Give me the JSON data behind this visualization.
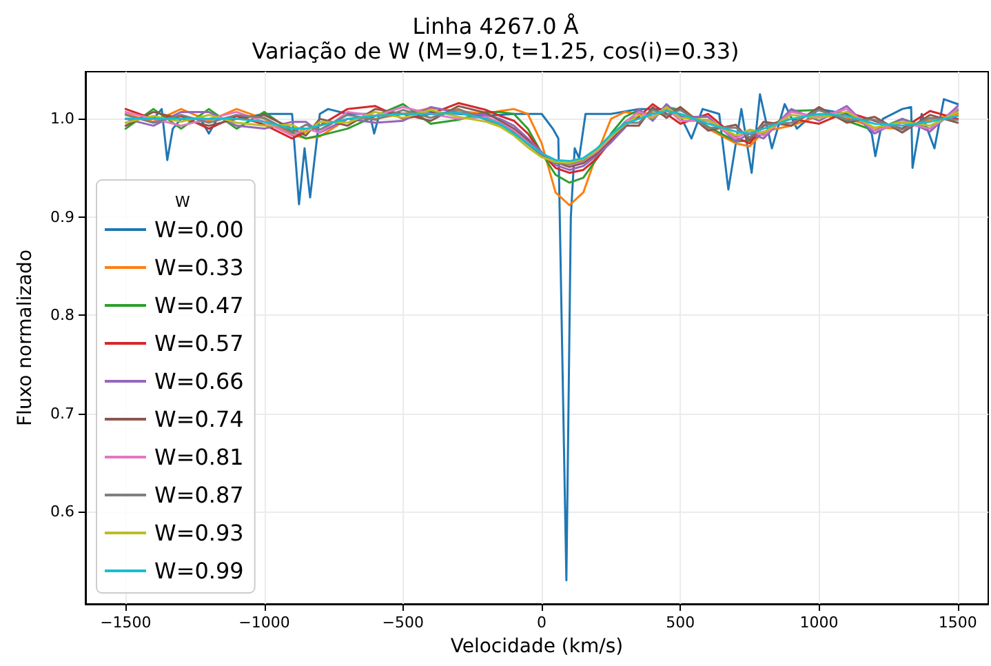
{
  "chart_data": {
    "type": "line",
    "title": "Linha 4267.0 Å",
    "subtitle": "Variação de W (M=9.0, t=1.25, cos(i)=0.33)",
    "xlabel": "Velocidade (km/s)",
    "ylabel": "Fluxo normalizado",
    "legend_title": "W",
    "legend": "bottom left",
    "grid": true,
    "marker": "none",
    "line_style": "solid",
    "xlim": [
      -1645,
      1610
    ],
    "ylim": [
      0.506,
      1.048
    ],
    "xticks": [
      {
        "value": -1500,
        "label": "−1500"
      },
      {
        "value": -1000,
        "label": "−1000"
      },
      {
        "value": -500,
        "label": "−500"
      },
      0,
      500,
      1000,
      1500
    ],
    "yticks": [
      0.6,
      0.7,
      0.8,
      0.9,
      {
        "value": 1.0,
        "label": "1.0"
      }
    ],
    "x": [
      -1500,
      -1400,
      -1300,
      -1200,
      -1100,
      -1000,
      -900,
      -850,
      -800,
      -700,
      -600,
      -500,
      -400,
      -300,
      -200,
      -150,
      -100,
      -50,
      0,
      50,
      100,
      150,
      200,
      250,
      300,
      350,
      400,
      450,
      500,
      600,
      700,
      750,
      800,
      900,
      1000,
      1100,
      1200,
      1300,
      1400,
      1500
    ],
    "series": [
      {
        "name": "W=0.00",
        "color": "#1f77b4",
        "x": [
          -1500,
          -1400,
          -1370,
          -1350,
          -1330,
          -1300,
          -1230,
          -1200,
          -1170,
          -1100,
          -1000,
          -900,
          -875,
          -855,
          -835,
          -800,
          -770,
          -700,
          -620,
          -604,
          -585,
          -500,
          -400,
          -300,
          -200,
          -100,
          0,
          40,
          60,
          89,
          105,
          119,
          135,
          158,
          250,
          350,
          450,
          500,
          540,
          580,
          640,
          673,
          720,
          757,
          787,
          830,
          876,
          920,
          1000,
          1100,
          1150,
          1190,
          1203,
          1230,
          1300,
          1332,
          1337,
          1370,
          1416,
          1450,
          1500
        ],
        "values": [
          1.0,
          1.0,
          1.01,
          0.958,
          0.99,
          1.0,
          1.0,
          0.985,
          1.0,
          1.0,
          1.005,
          1.005,
          0.913,
          0.97,
          0.92,
          1.005,
          1.01,
          1.005,
          1.005,
          0.985,
          1.005,
          1.005,
          1.007,
          1.005,
          1.003,
          1.005,
          1.005,
          0.99,
          0.98,
          0.53,
          0.9,
          0.97,
          0.96,
          1.005,
          1.005,
          1.01,
          1.01,
          1.003,
          0.98,
          1.01,
          1.005,
          0.928,
          1.01,
          0.945,
          1.025,
          0.97,
          1.015,
          0.99,
          1.01,
          1.005,
          1.0,
          0.985,
          0.962,
          1.0,
          1.01,
          1.012,
          0.95,
          1.005,
          0.97,
          1.02,
          1.015
        ]
      },
      {
        "name": "W=0.33",
        "color": "#ff7f0e",
        "values": [
          1.005,
          0.997,
          1.01,
          0.998,
          1.01,
          1.0,
          0.984,
          0.98,
          0.982,
          1.0,
          1.0,
          1.005,
          1.011,
          1.008,
          1.005,
          1.008,
          1.01,
          1.005,
          0.975,
          0.925,
          0.912,
          0.925,
          0.965,
          1.0,
          1.007,
          1.005,
          1.006,
          1.004,
          1.012,
          0.99,
          0.975,
          0.972,
          0.987,
          0.993,
          1.003,
          1.001,
          0.991,
          0.99,
          0.999,
          1.005
        ]
      },
      {
        "name": "W=0.47",
        "color": "#2ca02c",
        "values": [
          0.99,
          1.01,
          0.99,
          1.01,
          0.99,
          1.007,
          0.987,
          0.98,
          0.983,
          0.99,
          1.003,
          1.015,
          0.995,
          0.999,
          1.007,
          1.007,
          1.005,
          0.99,
          0.965,
          0.943,
          0.935,
          0.94,
          0.96,
          0.985,
          1.002,
          1.009,
          1.0,
          1.012,
          1.009,
          0.992,
          0.977,
          0.978,
          0.985,
          1.008,
          1.009,
          0.998,
          0.988,
          1.0,
          0.99,
          1.009
        ]
      },
      {
        "name": "W=0.57",
        "color": "#d62728",
        "values": [
          1.01,
          1.0,
          1.003,
          0.99,
          1.003,
          0.994,
          0.98,
          0.987,
          0.993,
          1.01,
          1.013,
          1.0,
          1.005,
          1.016,
          1.009,
          1.003,
          0.998,
          0.985,
          0.965,
          0.95,
          0.945,
          0.948,
          0.96,
          0.978,
          0.995,
          1.002,
          1.015,
          1.005,
          0.995,
          1.005,
          0.981,
          0.975,
          0.993,
          1.0,
          0.995,
          1.007,
          0.998,
          0.99,
          1.008,
          1.0
        ]
      },
      {
        "name": "W=0.66",
        "color": "#9467bd",
        "values": [
          1.0,
          0.993,
          1.007,
          1.007,
          0.993,
          0.99,
          0.997,
          0.997,
          0.986,
          1.0,
          0.996,
          0.998,
          1.012,
          1.006,
          1.004,
          1.0,
          0.993,
          0.98,
          0.966,
          0.953,
          0.948,
          0.952,
          0.963,
          0.976,
          0.991,
          1.01,
          0.998,
          1.015,
          1.002,
          1.002,
          0.977,
          0.985,
          0.98,
          1.01,
          0.998,
          1.013,
          0.985,
          1.0,
          0.987,
          1.013
        ]
      },
      {
        "name": "W=0.74",
        "color": "#8c564b",
        "values": [
          0.993,
          1.007,
          1.0,
          0.993,
          1.0,
          1.004,
          0.99,
          0.983,
          1.0,
          0.993,
          1.01,
          1.005,
          0.998,
          1.013,
          1.006,
          0.998,
          0.99,
          0.978,
          0.962,
          0.956,
          0.951,
          0.955,
          0.965,
          0.98,
          0.993,
          0.993,
          1.012,
          1.001,
          1.012,
          0.988,
          0.994,
          0.978,
          0.997,
          0.993,
          1.012,
          0.996,
          1.002,
          0.986,
          1.004,
          0.996
        ]
      },
      {
        "name": "W=0.81",
        "color": "#e377c2",
        "values": [
          1.007,
          1.0,
          0.993,
          1.0,
          1.007,
          0.997,
          0.983,
          0.99,
          0.986,
          1.007,
          1.003,
          1.012,
          1.005,
          1.0,
          1.002,
          0.996,
          0.988,
          0.976,
          0.964,
          0.957,
          0.953,
          0.957,
          0.967,
          0.981,
          0.997,
          1.007,
          1.002,
          1.011,
          0.998,
          0.998,
          0.98,
          0.988,
          0.983,
          1.007,
          1.002,
          1.01,
          0.988,
          0.996,
          0.99,
          1.01
        ]
      },
      {
        "name": "W=0.87",
        "color": "#7f7f7f",
        "values": [
          1.004,
          0.996,
          1.004,
          0.996,
          1.004,
          1.001,
          0.986,
          0.994,
          0.989,
          1.004,
          0.999,
          1.009,
          1.001,
          1.01,
          0.999,
          0.994,
          0.986,
          0.974,
          0.963,
          0.955,
          0.954,
          0.958,
          0.969,
          0.983,
          0.996,
          0.996,
          1.009,
          1.004,
          1.009,
          0.991,
          0.991,
          0.981,
          0.994,
          0.996,
          1.009,
          0.999,
          0.999,
          0.989,
          1.001,
          0.999
        ]
      },
      {
        "name": "W=0.93",
        "color": "#bcbd22",
        "values": [
          0.996,
          1.003,
          0.997,
          1.004,
          0.996,
          0.993,
          0.994,
          0.986,
          0.997,
          0.996,
          1.007,
          1.001,
          1.009,
          1.002,
          0.997,
          0.992,
          0.983,
          0.971,
          0.961,
          0.956,
          0.955,
          0.959,
          0.968,
          0.982,
          0.994,
          1.004,
          1.001,
          1.012,
          1.001,
          0.999,
          0.983,
          0.989,
          0.986,
          1.004,
          1.001,
          1.007,
          0.991,
          0.997,
          0.993,
          1.007
        ]
      },
      {
        "name": "W=0.99",
        "color": "#17becf",
        "values": [
          1.0,
          1.0,
          1.0,
          1.0,
          1.0,
          0.997,
          0.99,
          0.99,
          0.993,
          1.0,
          1.003,
          1.005,
          1.005,
          1.006,
          1.0,
          0.995,
          0.985,
          0.975,
          0.965,
          0.958,
          0.957,
          0.96,
          0.97,
          0.984,
          0.995,
          1.0,
          1.005,
          1.008,
          1.005,
          0.995,
          0.987,
          0.985,
          0.99,
          1.0,
          1.005,
          1.003,
          0.995,
          0.993,
          0.997,
          1.003
        ]
      }
    ]
  }
}
